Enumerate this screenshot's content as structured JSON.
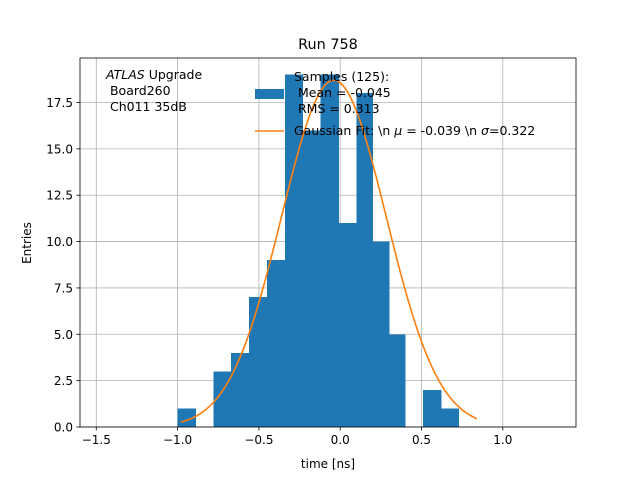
{
  "chart_data": {
    "type": "bar",
    "title": "Run 758",
    "xlabel": "time [ns]",
    "ylabel": "Entries",
    "xlim": [
      -1.6,
      1.45
    ],
    "ylim": [
      0,
      19.9
    ],
    "grid": true,
    "x_ticks": [
      {
        "value": -1.5,
        "label": "−1.5"
      },
      {
        "value": -1.0,
        "label": "−1.0"
      },
      {
        "value": -0.5,
        "label": "−0.5"
      },
      {
        "value": 0.0,
        "label": "0.0"
      },
      {
        "value": 0.5,
        "label": "0.5"
      },
      {
        "value": 1.0,
        "label": "1.0"
      }
    ],
    "y_ticks": [
      {
        "value": 0.0,
        "label": "0.0"
      },
      {
        "value": 2.5,
        "label": "2.5"
      },
      {
        "value": 5.0,
        "label": "5.0"
      },
      {
        "value": 7.5,
        "label": "7.5"
      },
      {
        "value": 10.0,
        "label": "10.0"
      },
      {
        "value": 12.5,
        "label": "12.5"
      },
      {
        "value": 15.0,
        "label": "15.0"
      },
      {
        "value": 17.5,
        "label": "17.5"
      }
    ],
    "histogram": {
      "name": "Samples (125):\n Mean = -0.045\n RMS = 0.313",
      "color": "#1f77b4",
      "bin_edges": [
        -1.0,
        -0.89,
        -0.78,
        -0.67,
        -0.56,
        -0.45,
        -0.34,
        -0.23,
        -0.12,
        -0.01,
        0.1,
        0.2,
        0.3,
        0.4,
        0.51,
        0.62,
        0.73,
        0.84
      ],
      "counts": [
        1,
        0,
        3,
        4,
        7,
        9,
        19,
        16,
        19,
        11,
        18,
        10,
        5,
        0,
        2,
        1,
        0
      ]
    },
    "gaussian_fit": {
      "name": "Gaussian Fit: \\n $\\mu$ = -0.039 \\n $\\sigma$=0.322",
      "color": "#ff7f0e",
      "mu": -0.039,
      "sigma": 0.322,
      "amplitude": 18.7,
      "x_range": [
        -0.98,
        0.84
      ]
    },
    "legend": {
      "placement": "top-right",
      "hist_label_lines": [
        "Samples (125):",
        " Mean = -0.045",
        " RMS = 0.313"
      ],
      "fit_label_prefix": "Gaussian Fit: \\n ",
      "fit_mu_symbol": "μ",
      "fit_label_mid": " = -0.039 \\n ",
      "fit_sigma_symbol": "σ",
      "fit_label_suffix": "=0.322"
    },
    "annotation": {
      "experiment": "ATLAS",
      "experiment_suffix": " Upgrade",
      "line2": " Board260",
      "line3": " Ch011 35dB"
    }
  }
}
